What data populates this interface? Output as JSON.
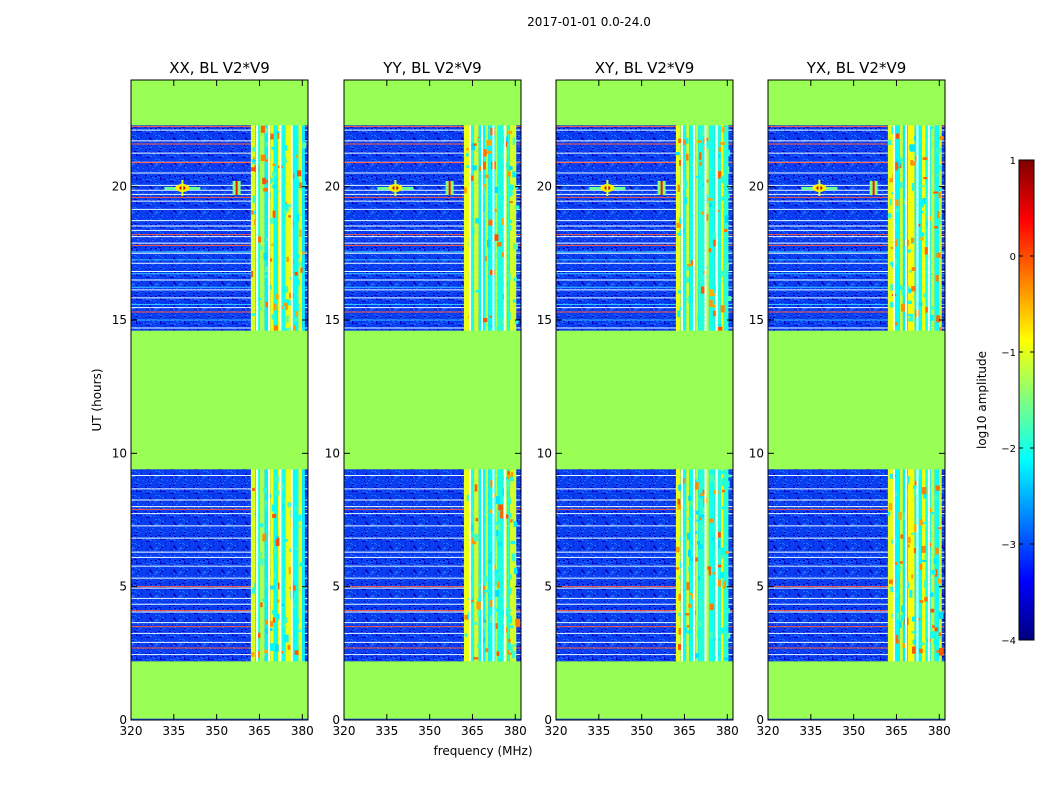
{
  "chart_data": {
    "type": "heatmap",
    "suptitle": "2017-01-01 0.0-24.0",
    "xlabel": "frequency (MHz)",
    "ylabel": "UT (hours)",
    "xlim": [
      320,
      382
    ],
    "ylim": [
      0,
      24
    ],
    "xticks": [
      320,
      335,
      350,
      365,
      380
    ],
    "yticks": [
      0,
      5,
      10,
      15,
      20
    ],
    "panels": [
      {
        "title": "XX, BL V2*V9",
        "rfi_sources_mhz": [
          338,
          357
        ]
      },
      {
        "title": "YY, BL V2*V9",
        "rfi_sources_mhz": [
          338,
          357
        ]
      },
      {
        "title": "XY, BL V2*V9",
        "rfi_sources_mhz": [
          338,
          357
        ]
      },
      {
        "title": "YX, BL V2*V9",
        "rfi_sources_mhz": [
          338,
          357
        ]
      }
    ],
    "flagged_time_ranges_hours": [
      [
        0.0,
        2.2
      ],
      [
        9.4,
        14.6
      ],
      [
        22.3,
        24.0
      ]
    ],
    "band_region_mhz": [
      362,
      380
    ],
    "colorbar": {
      "label": "log10 amplitude",
      "range": [
        -4,
        1
      ],
      "ticks": [
        1,
        0,
        -1,
        -2,
        -3,
        -4
      ],
      "tick_labels": [
        "1",
        "0",
        "−1",
        "−2",
        "−3",
        "−4"
      ],
      "colormap": "jet",
      "colors": [
        "#00007f",
        "#0000ff",
        "#007fff",
        "#00ffff",
        "#7fff7f",
        "#ffff00",
        "#ff7f00",
        "#ff0000",
        "#7f0000"
      ]
    },
    "flag_color": "#99ff55"
  }
}
